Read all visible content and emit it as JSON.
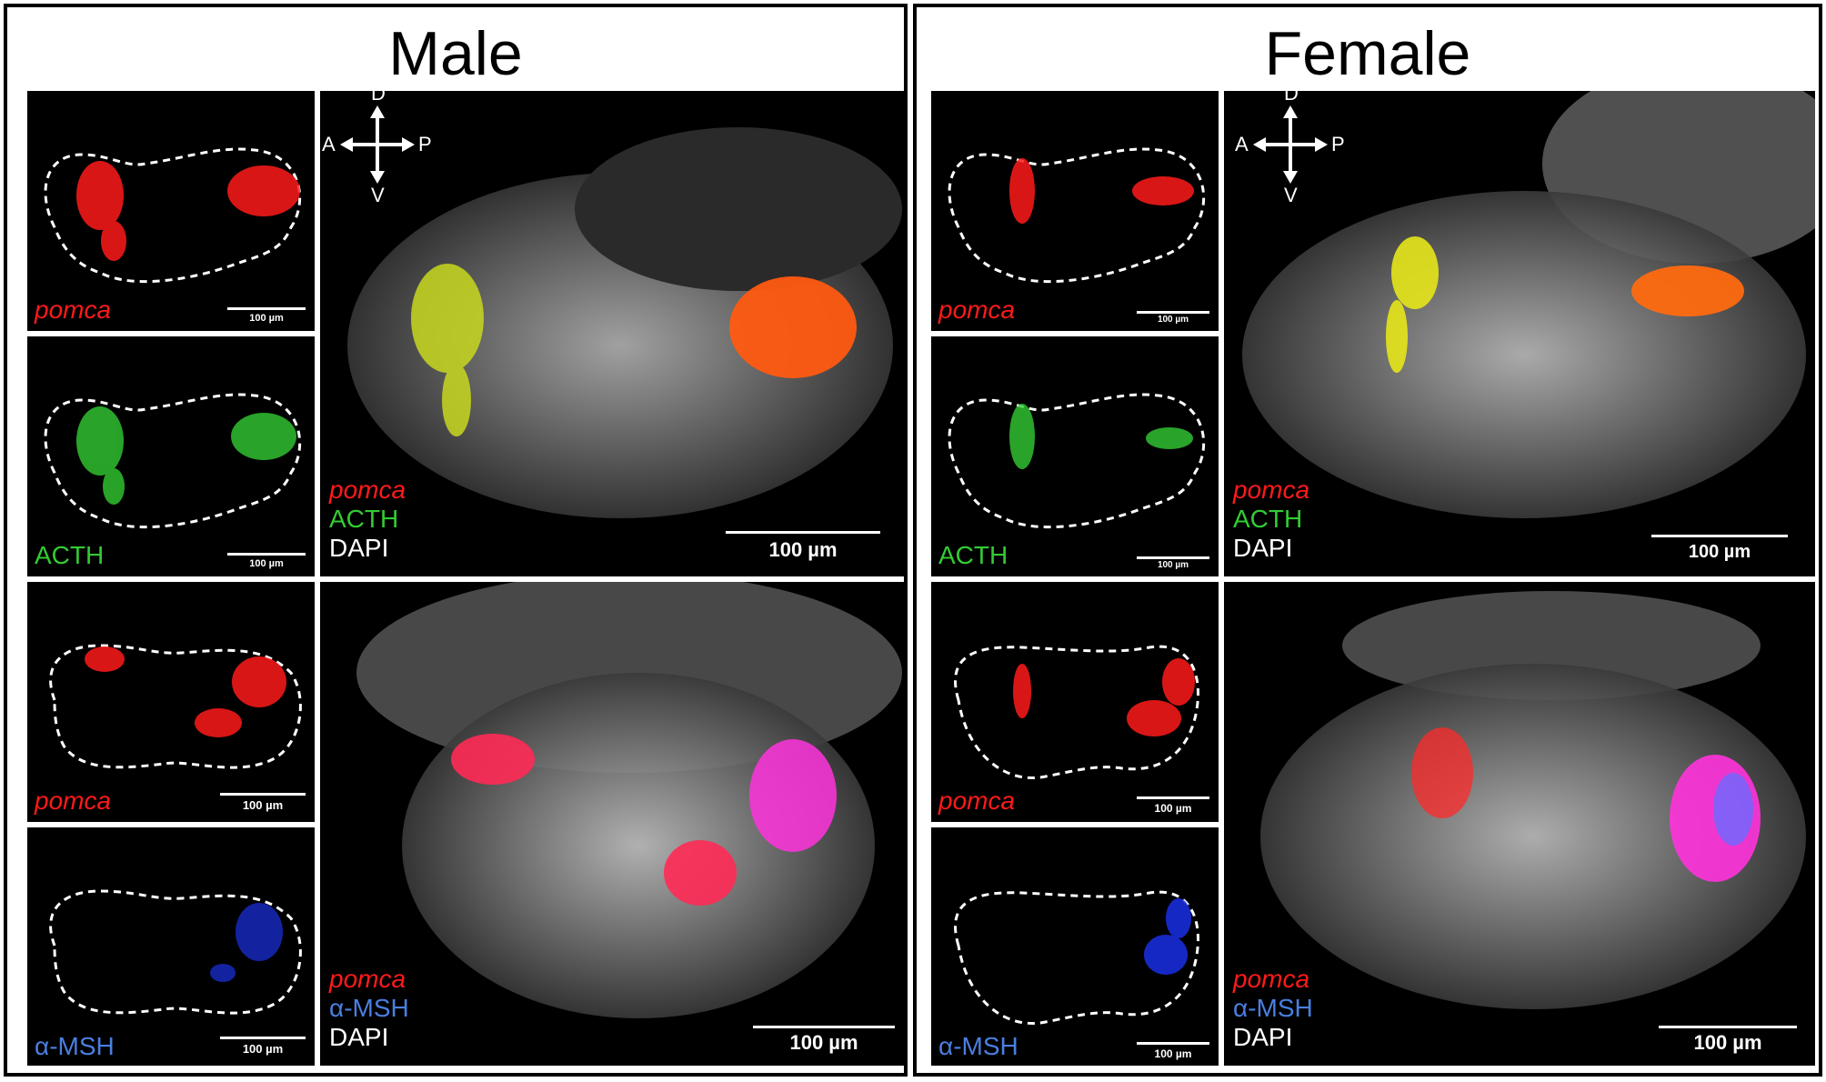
{
  "figure": {
    "groups": [
      {
        "title": "Male"
      },
      {
        "title": "Female"
      }
    ],
    "labels": {
      "pomca": "pomca",
      "acth": "ACTH",
      "msh": "α-MSH",
      "dapi": "DAPI"
    },
    "scalebar_small": "100 µm",
    "scalebar_large": "100 µm",
    "orientation": {
      "dorsal": "D",
      "ventral": "V",
      "anterior": "A",
      "posterior": "P"
    },
    "colors": {
      "pomca": "#ff1a1a",
      "acth": "#33cc33",
      "msh": "#4a7fe0",
      "dapi": "#ffffff",
      "background": "#000000"
    }
  }
}
